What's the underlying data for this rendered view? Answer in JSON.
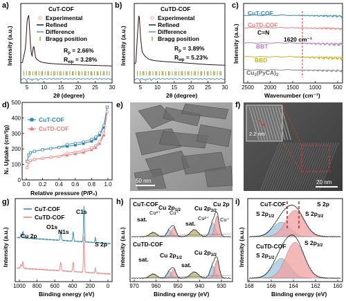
{
  "colors": {
    "experimental": "#f2a0a0",
    "refined": "#111111",
    "difference": "#3b8fc7",
    "bragg": "#8c8a1c",
    "cut": "#2a86b5",
    "cutd": "#f07b7b",
    "bbt": "#b37cc7",
    "bbd": "#c9b21c",
    "cu3": "#888888",
    "fill_blue": "#9ec5de",
    "fill_red": "#f2a0a0",
    "fill_olive": "#b8b36a",
    "fill_gray": "#d0d0d0"
  },
  "panels": {
    "a": {
      "label": "a)",
      "title": "CuT-COF",
      "legend": [
        "Experimental",
        "Refined",
        "Difference",
        "Bragg position"
      ],
      "rp": "R",
      "rp_sub": "p",
      "rp_val": " = 2.66%",
      "rwp_sub": "wp",
      "rwp_val": " = 3.28%",
      "ylabel": "Intensity (a.u.)",
      "xlabel": "2θ (degree)",
      "xticks": [
        "5",
        "10",
        "15",
        "20",
        "25",
        "30"
      ]
    },
    "b": {
      "label": "b)",
      "title": "CuTD-COF",
      "legend": [
        "Experimental",
        "Refined",
        "Difference",
        "Bragg position"
      ],
      "rp": "R",
      "rp_sub": "p",
      "rp_val": " = 3.89%",
      "rwp_sub": "wp",
      "rwp_val": " = 5.23%",
      "ylabel": "Intensity (a.u.)",
      "xlabel": "2θ (degree)",
      "xticks": [
        "5",
        "10",
        "15",
        "20",
        "25",
        "30"
      ]
    },
    "c": {
      "label": "c)",
      "traces": [
        "CuT-COF",
        "CuTD-COF",
        "BBT",
        "BBD",
        "Cu3(PyCA)3"
      ],
      "cn_label": "C=N",
      "cn_wavenumber": "1620 cm⁻¹",
      "ylabel": "Intensity (a.u.)",
      "xlabel": "Wavenumber (cm⁻¹)",
      "xticks": [
        "2500",
        "2000",
        "1500",
        "1000",
        "500"
      ]
    },
    "d": {
      "label": "d)",
      "legend": [
        "CuT-COF",
        "CuTD-COF"
      ],
      "ylabel": "N₂ Uptake (cm³/g)",
      "xlabel": "Relative pressure (P/P₀)",
      "xticks": [
        "0.0",
        "0.2",
        "0.4",
        "0.6",
        "0.8",
        "1.0"
      ],
      "yticks": [
        "0",
        "100",
        "200",
        "300",
        "400",
        "500"
      ]
    },
    "e": {
      "label": "e)",
      "scalebar": "50 nm"
    },
    "f": {
      "label": "f)",
      "scalebar": "20 nm",
      "inset_scalebar": "2.2 nm"
    },
    "g": {
      "label": "g)",
      "legend": [
        "CuT-COF",
        "CuTD-COF"
      ],
      "peaks": [
        "Cu 2p",
        "O1s",
        "N1s",
        "C1s",
        "S 2p"
      ],
      "ylabel": "Intensity (a.u.)",
      "xlabel": "Binding energy (eV)",
      "xticks": [
        "1000",
        "800",
        "600",
        "400",
        "200",
        "0"
      ]
    },
    "h": {
      "label": "h)",
      "top_title": "CuT-COF",
      "bottom_title": "CuTD-COF",
      "top_labels": [
        "sat.",
        "Cu²⁺",
        "Cu 2p1/2",
        "Cu⁺",
        "Cu 2p3/2",
        "Cu 2p",
        "Cu²⁺",
        "sat.",
        "Cu⁺"
      ],
      "bottom_labels": [
        "sat.",
        "Cu 2p1/2",
        "Cu 2p3/2",
        "sat."
      ],
      "ylabel": "Intensity (a.u.)",
      "xlabel": "Binding energy (eV)",
      "xticks": [
        "970",
        "960",
        "950",
        "940",
        "930"
      ]
    },
    "i": {
      "label": "i)",
      "top_title": "CuT-COF",
      "bottom_title": "CuTD-COF",
      "top_labels": [
        "S 2p1/2",
        "S 2p3/2",
        "S 2p"
      ],
      "bottom_labels": [
        "S 2p1/2",
        "S 2p3/2"
      ],
      "ylabel": "Intensity (a.u.)",
      "xlabel": "Binding energy (eV)",
      "xticks": [
        "168",
        "166",
        "164",
        "162",
        "160"
      ]
    }
  },
  "chart_data": [
    {
      "type": "line",
      "panel": "a",
      "title": "CuT-COF",
      "xlabel": "2θ (degree)",
      "ylabel": "Intensity (a.u.)",
      "xlim": [
        1.5,
        30
      ],
      "x": [
        2,
        3,
        3.5,
        4,
        4.6,
        5,
        5.5,
        6.2,
        7,
        8,
        9,
        10,
        12,
        15,
        20,
        25,
        30
      ],
      "series": [
        {
          "name": "Experimental",
          "values": [
            12,
            40,
            92,
            100,
            40,
            22,
            45,
            20,
            16,
            13,
            12,
            11,
            10,
            9,
            8,
            7,
            6
          ]
        },
        {
          "name": "Refined",
          "values": [
            12,
            40,
            92,
            100,
            40,
            22,
            45,
            20,
            16,
            13,
            12,
            11,
            10,
            9,
            8,
            7,
            6
          ]
        }
      ],
      "rp": "2.66%",
      "rwp": "3.28%"
    },
    {
      "type": "line",
      "panel": "b",
      "title": "CuTD-COF",
      "xlabel": "2θ (degree)",
      "ylabel": "Intensity (a.u.)",
      "xlim": [
        1.5,
        30
      ],
      "x": [
        2,
        2.5,
        3,
        3.5,
        4,
        5,
        6,
        7,
        8,
        10,
        12,
        15,
        20,
        25,
        30
      ],
      "series": [
        {
          "name": "Experimental",
          "values": [
            10,
            60,
            100,
            55,
            30,
            22,
            18,
            16,
            15,
            14,
            13,
            12,
            10,
            8,
            7
          ]
        },
        {
          "name": "Refined",
          "values": [
            10,
            60,
            100,
            55,
            30,
            22,
            18,
            16,
            15,
            14,
            13,
            12,
            10,
            8,
            7
          ]
        }
      ],
      "rp": "3.89%",
      "rwp": "5.23%"
    },
    {
      "type": "line",
      "panel": "d",
      "xlabel": "Relative pressure (P/P₀)",
      "ylabel": "N₂ Uptake (cm³/g)",
      "xlim": [
        0,
        1
      ],
      "ylim": [
        0,
        500
      ],
      "x": [
        0.01,
        0.03,
        0.05,
        0.1,
        0.2,
        0.3,
        0.4,
        0.5,
        0.6,
        0.7,
        0.8,
        0.85,
        0.9,
        0.95,
        0.99
      ],
      "series": [
        {
          "name": "CuT-COF",
          "values": [
            120,
            160,
            175,
            185,
            195,
            203,
            210,
            217,
            225,
            235,
            250,
            265,
            290,
            340,
            470
          ]
        },
        {
          "name": "CuTD-COF",
          "values": [
            80,
            115,
            125,
            132,
            140,
            147,
            153,
            160,
            168,
            178,
            195,
            210,
            235,
            290,
            440
          ]
        }
      ]
    }
  ]
}
